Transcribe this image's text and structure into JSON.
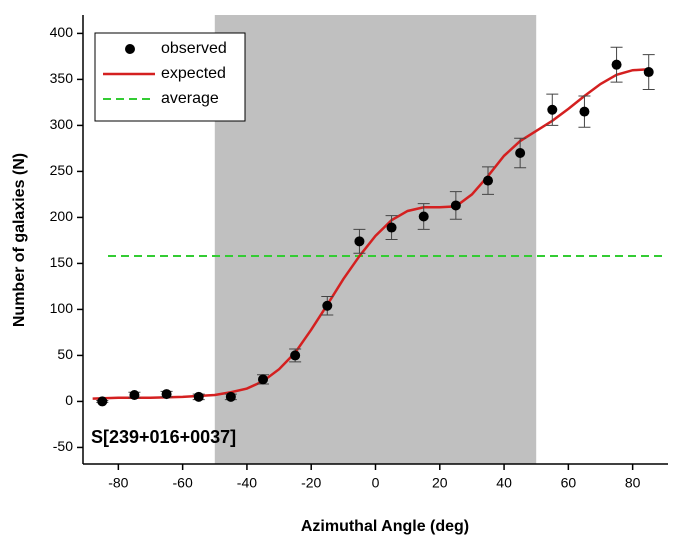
{
  "chart_data": {
    "type": "scatter-fit",
    "xlabel": "Azimuthal Angle (deg)",
    "ylabel": "Number of galaxies (N)",
    "annotation": "S[239+016+0037]",
    "xlim": [
      -91,
      91
    ],
    "ylim": [
      -68,
      420
    ],
    "xticks": [
      -80,
      -60,
      -40,
      -20,
      0,
      20,
      40,
      60,
      80
    ],
    "yticks": [
      -50,
      0,
      50,
      100,
      150,
      200,
      250,
      300,
      350,
      400
    ],
    "shaded_region": [
      -50,
      50
    ],
    "shade_color": "#c0c0c0",
    "legend": "upper left",
    "series": [
      {
        "name": "observed",
        "color": "#000000",
        "kind": "points",
        "x": [
          -85,
          -75,
          -65,
          -55,
          -45,
          -35,
          -25,
          -15,
          -5,
          5,
          15,
          25,
          35,
          45,
          55,
          65,
          75,
          85
        ],
        "values": [
          0,
          7,
          8,
          5,
          5,
          24,
          50,
          104,
          174,
          189,
          201,
          213,
          240,
          270,
          317,
          315,
          366,
          358
        ],
        "errors": [
          1,
          3,
          3,
          3,
          3,
          5,
          7,
          10,
          13,
          13,
          14,
          15,
          15,
          16,
          17,
          17,
          19,
          19
        ]
      },
      {
        "name": "expected",
        "color": "#d42020",
        "kind": "line",
        "x": [
          -88,
          -80,
          -70,
          -60,
          -50,
          -45,
          -40,
          -35,
          -30,
          -25,
          -20,
          -15,
          -10,
          -5,
          0,
          5,
          10,
          15,
          20,
          25,
          30,
          35,
          40,
          45,
          50,
          55,
          60,
          65,
          70,
          75,
          80,
          85
        ],
        "values": [
          3,
          4,
          4,
          5,
          7,
          10,
          14,
          22,
          35,
          53,
          78,
          105,
          133,
          158,
          180,
          197,
          207,
          211,
          211,
          212,
          225,
          245,
          267,
          283,
          294,
          305,
          318,
          332,
          345,
          355,
          360,
          361
        ]
      },
      {
        "name": "average",
        "color": "#33cc33",
        "kind": "hline",
        "value": 158
      }
    ]
  }
}
